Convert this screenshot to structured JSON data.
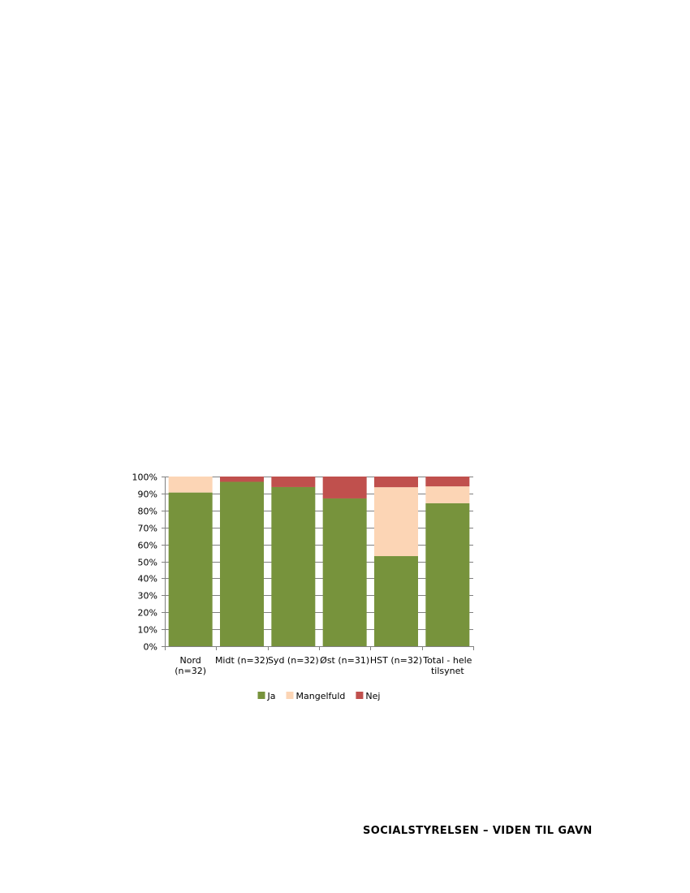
{
  "footer": {
    "text": "SOCIALSTYRELSEN – VIDEN TIL GAVN"
  },
  "chart_data": {
    "type": "bar",
    "stacked": true,
    "categories": [
      [
        "Nord",
        "(n=32)"
      ],
      [
        "Midt (n=32)"
      ],
      [
        "Syd (n=32)"
      ],
      [
        "Øst (n=31)"
      ],
      [
        "HST (n=32)"
      ],
      [
        "Total - hele",
        "tilsynet"
      ]
    ],
    "series": [
      {
        "name": "Ja",
        "color": "#77933c",
        "values": [
          90.6,
          96.9,
          93.8,
          87.1,
          53.1,
          84.3
        ]
      },
      {
        "name": "Mangelfuld",
        "color": "#fcd5b5",
        "values": [
          9.4,
          0,
          0,
          0,
          40.6,
          9.9
        ]
      },
      {
        "name": "Nej",
        "color": "#c0504d",
        "values": [
          0,
          3.1,
          6.2,
          12.9,
          6.3,
          5.8
        ]
      }
    ],
    "ylim": [
      0,
      100
    ],
    "yticks": [
      "0%",
      "10%",
      "20%",
      "30%",
      "40%",
      "50%",
      "60%",
      "70%",
      "80%",
      "90%",
      "100%"
    ],
    "grid": true,
    "legend": "bottom"
  }
}
